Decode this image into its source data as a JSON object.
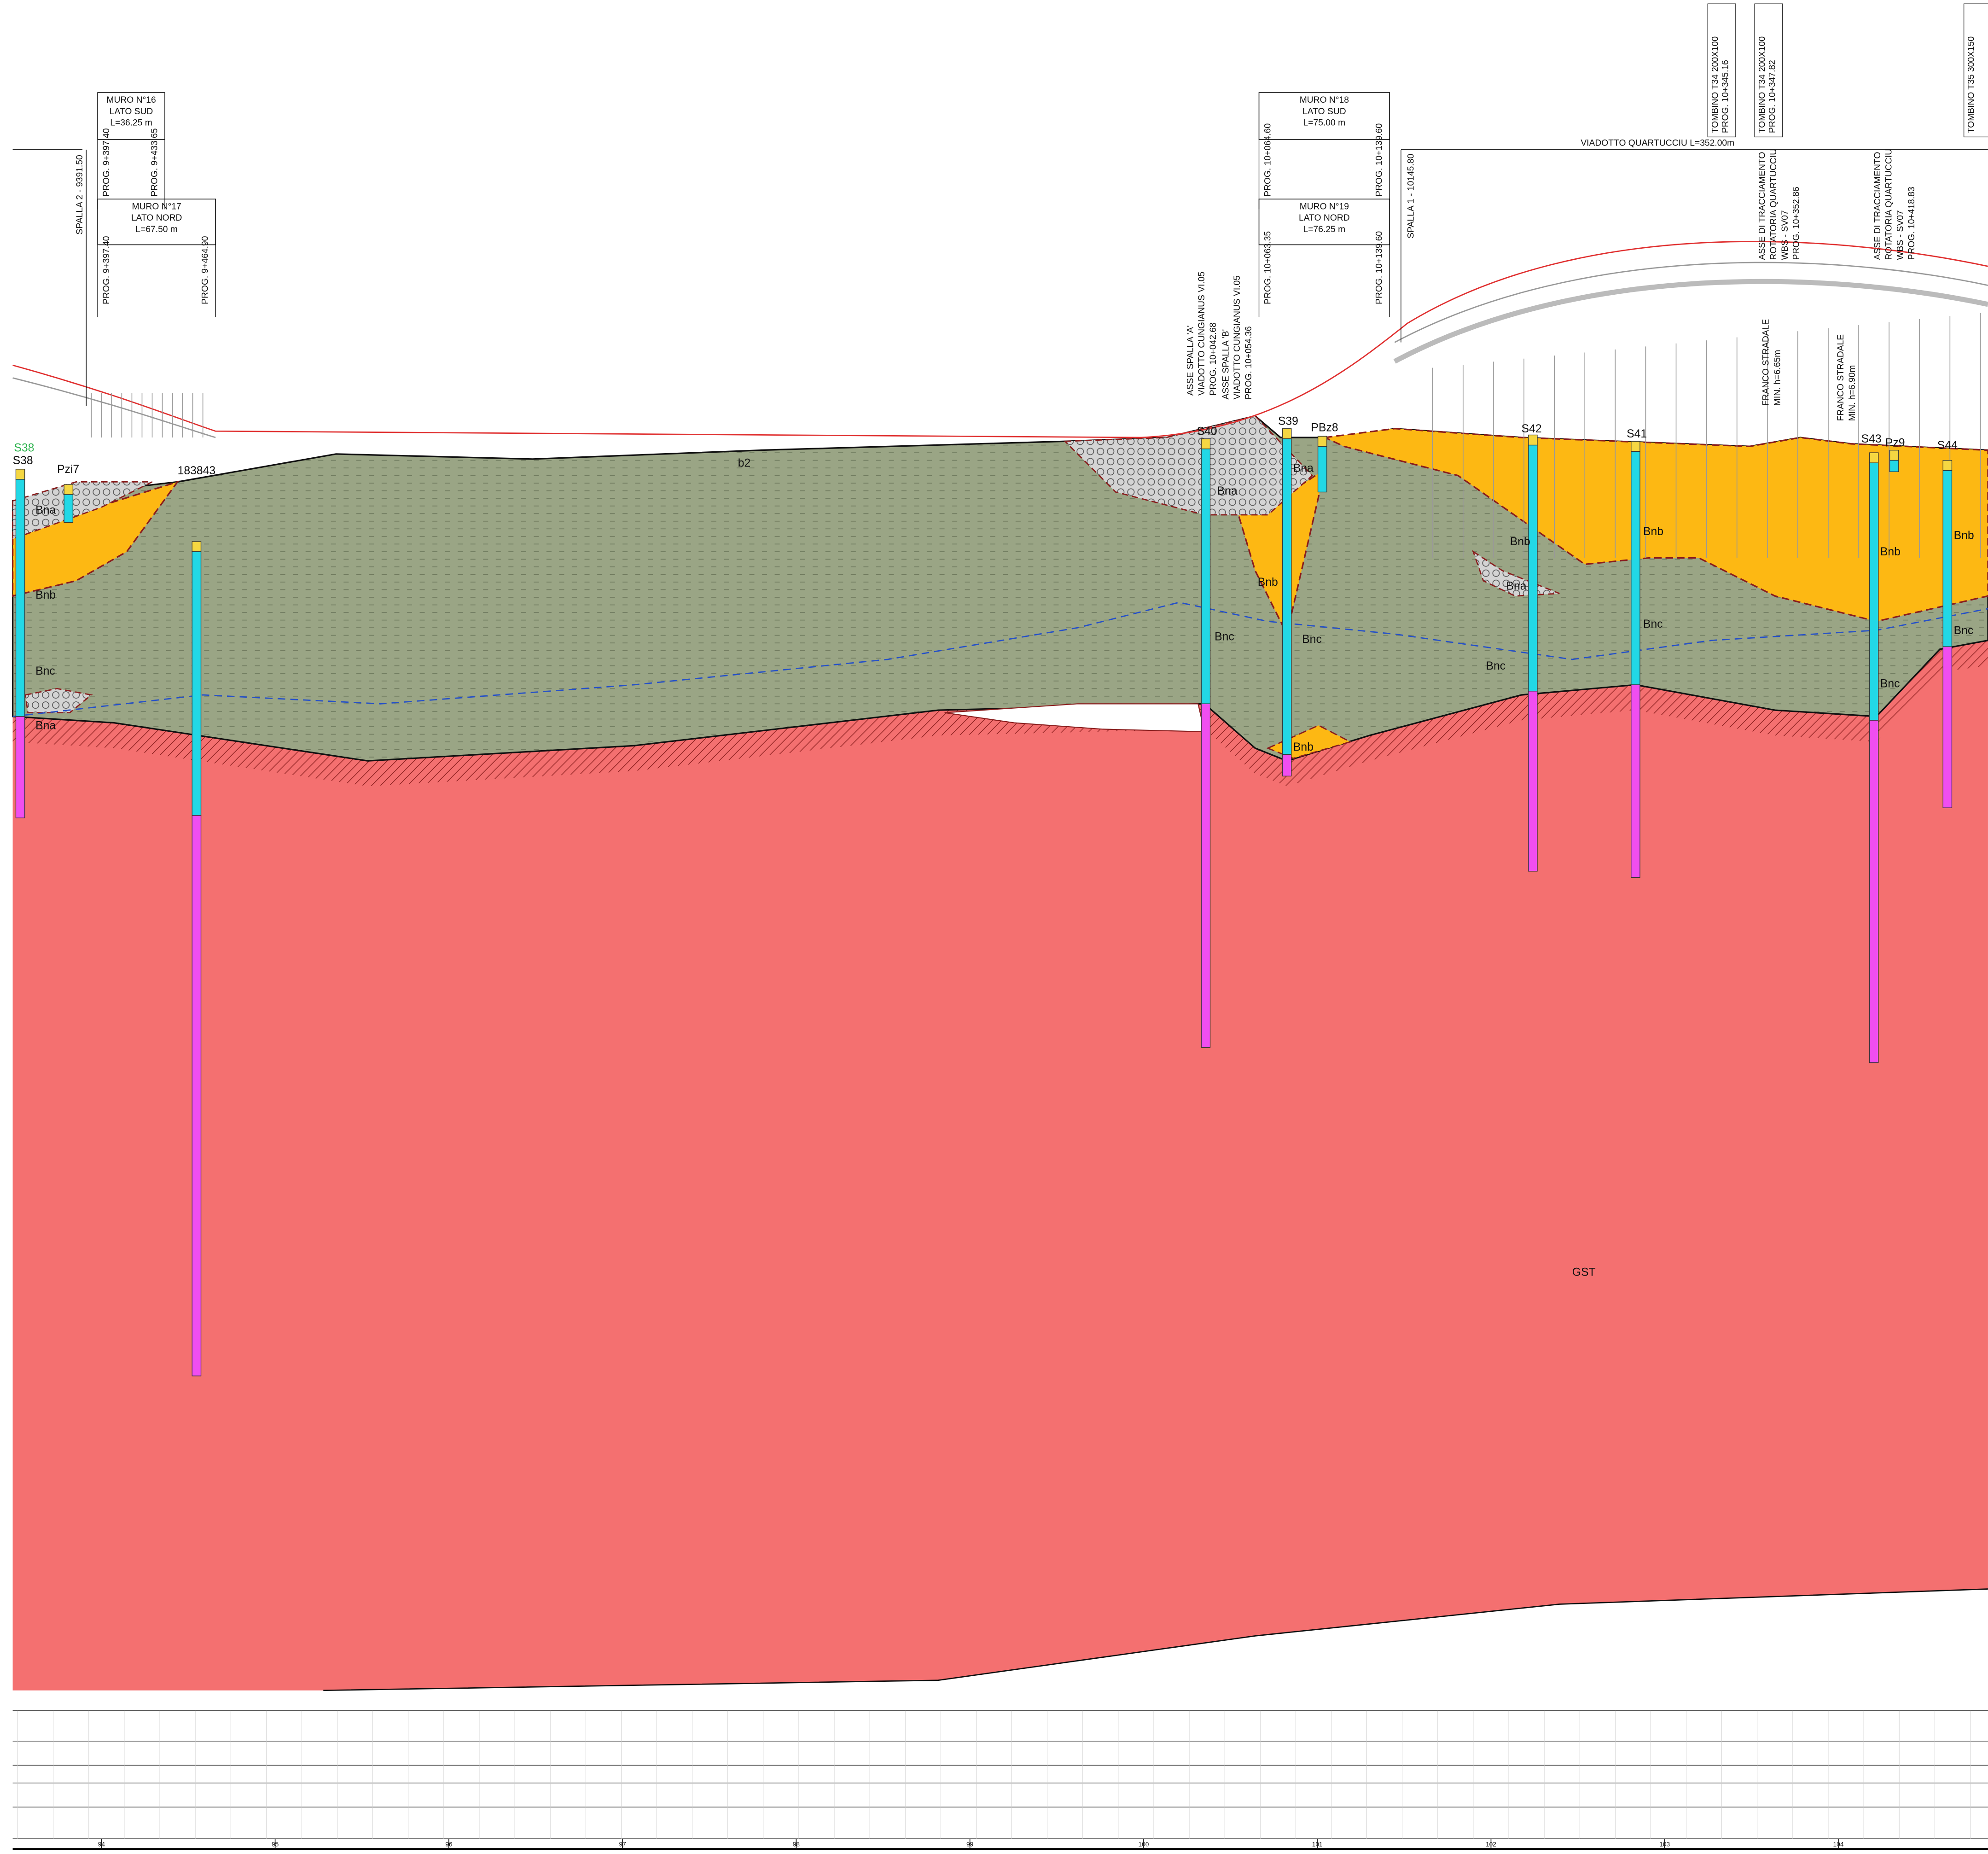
{
  "walls": [
    {
      "name": "MURO N°16",
      "side": "LATO SUD",
      "length": "L=36.25 m",
      "start": "PROG. 9+397.40",
      "end": "PROG. 9+433.65"
    },
    {
      "name": "MURO N°17",
      "side": "LATO NORD",
      "length": "L=67.50 m",
      "start": "PROG. 9+397.40",
      "end": "PROG. 9+464.90"
    },
    {
      "name": "MURO N°18",
      "side": "LATO SUD",
      "length": "L=75.00 m",
      "start": "PROG. 10+064.60",
      "end": "PROG. 10+139.60"
    },
    {
      "name": "MURO N°19",
      "side": "LATO NORD",
      "length": "L=76.25 m",
      "start": "PROG. 10+063.35",
      "end": "PROG. 10+139.60"
    }
  ],
  "culverts": [
    [
      "TOMBINO T34 200X100",
      "PROG. 10+345.16"
    ],
    [
      "TOMBINO T34 200X100",
      "PROG. 10+347.82"
    ],
    [
      "TOMBINO T35 300X150"
    ]
  ],
  "viaduct": "VIADOTTO QUARTUCCIU L=352.00m",
  "abutments": [
    "SPALLA 2 - 9391.50",
    "SPALLA 1 - 10145.80"
  ],
  "axes": [
    [
      "ASSE DI TRACCIAMENTO",
      "ROTATORIA QUARTUCCIU",
      "WBS - SV07",
      "PROG. 10+352.86"
    ],
    [
      "ASSE DI TRACCIAMENTO",
      "ROTATORIA QUARTUCCIU",
      "WBS - SV07",
      "PROG. 10+418.83"
    ]
  ],
  "clearances": [
    [
      "FRANCO STRADALE",
      "MIN. h=6.65m"
    ],
    [
      "FRANCO STRADALE",
      "MIN. h=6.90m"
    ]
  ],
  "spalla_axes": [
    [
      "ASSE SPALLA 'A'",
      "VIADOTTO CUNGIANUS VI.05",
      "PROG. 10+042.68"
    ],
    [
      "ASSE SPALLA 'B'",
      "VIADOTTO CUNGIANUS VI.05",
      "PROG. 10+054.36"
    ]
  ],
  "boreholes": [
    "S38",
    "S38",
    "Pzi7",
    "183843",
    "S40",
    "S39",
    "PBz8",
    "S42",
    "S41",
    "S43",
    "Pz9",
    "S44"
  ],
  "strata": [
    "Bna",
    "Bnb",
    "Bnc",
    "Bna",
    "b2",
    "Bna",
    "Bnb",
    "Bnc",
    "Bnc",
    "Bna",
    "Bnb",
    "Bnb",
    "Bna",
    "Bnb",
    "Bnc",
    "Bnc",
    "Bnb",
    "Bnc",
    "Bnb",
    "Bnc",
    "GST"
  ],
  "scale": [
    "94",
    "95",
    "96",
    "97",
    "98",
    "99",
    "100",
    "101",
    "102",
    "103",
    "104"
  ]
}
